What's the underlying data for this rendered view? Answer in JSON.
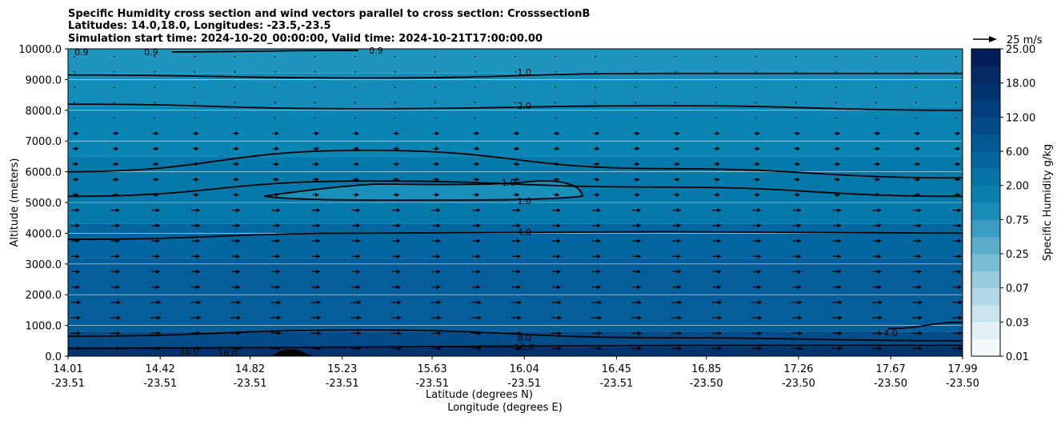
{
  "chart_data": {
    "type": "contour",
    "title": [
      "Specific Humidity cross section and wind vectors parallel to cross section: CrosssectionB",
      "Latitudes: 14.0,18.0, Longitudes: -23.5,-23.5",
      "Simulation start time: 2024-10-20_00:00:00, Valid time: 2024-10-21T17:00:00.00"
    ],
    "ylabel": "Altitude (meters)",
    "xlabel_lat": "Latitude (degrees N)",
    "xlabel_lon": "Longitude (degrees E)",
    "ylim": [
      0,
      10000
    ],
    "yticks": [
      "0.0",
      "1000.0",
      "2000.0",
      "3000.0",
      "4000.0",
      "5000.0",
      "6000.0",
      "7000.0",
      "8000.0",
      "9000.0",
      "10000.0"
    ],
    "xlim": [
      14.01,
      17.99
    ],
    "xticks": [
      {
        "lat": "14.01",
        "lon": "-23.51"
      },
      {
        "lat": "14.42",
        "lon": "-23.51"
      },
      {
        "lat": "14.82",
        "lon": "-23.51"
      },
      {
        "lat": "15.23",
        "lon": "-23.51"
      },
      {
        "lat": "15.63",
        "lon": "-23.51"
      },
      {
        "lat": "16.04",
        "lon": "-23.51"
      },
      {
        "lat": "16.45",
        "lon": "-23.51"
      },
      {
        "lat": "16.85",
        "lon": "-23.50"
      },
      {
        "lat": "17.26",
        "lon": "-23.50"
      },
      {
        "lat": "17.67",
        "lon": "-23.50"
      },
      {
        "lat": "17.99",
        "lon": "-23.50"
      }
    ],
    "colorbar_label": "Specific Humidity g/kg",
    "colorbar_ticks": [
      "0.01",
      "0.03",
      "0.07",
      "0.25",
      "0.75",
      "2.00",
      "6.00",
      "12.00",
      "18.00",
      "25.00"
    ],
    "quiver_key": "25 m/s",
    "contour_lines": [
      {
        "value": "0.9",
        "altitudes": [
          9900,
          9950
        ]
      },
      {
        "value": "1.0",
        "altitudes": [
          9150,
          9050,
          9200,
          9200
        ]
      },
      {
        "value": "2.0",
        "altitudes": [
          8200,
          8050,
          8150,
          8000
        ]
      },
      {
        "value": "4.0",
        "altitudes": [
          6000,
          6700,
          6100,
          5800
        ]
      },
      {
        "value": "1.0",
        "altitudes": [
          5200,
          5700,
          5500,
          5200
        ]
      },
      {
        "value": "4.0",
        "altitudes": [
          3800,
          4000,
          4050,
          4000
        ]
      },
      {
        "value": "8.0",
        "altitudes": [
          650,
          850,
          600,
          500
        ]
      },
      {
        "value": "16.0",
        "altitudes": [
          250,
          300,
          350,
          350
        ]
      },
      {
        "value": "4.0",
        "altitudes": [
          900,
          1100
        ]
      }
    ],
    "contour_labels": [
      {
        "text": "0.9",
        "lat": 14.07,
        "alt": 9900
      },
      {
        "text": "0.9",
        "lat": 14.38,
        "alt": 9900
      },
      {
        "text": "0.9",
        "lat": 15.38,
        "alt": 9950
      },
      {
        "text": "1.0",
        "lat": 16.04,
        "alt": 9250
      },
      {
        "text": "2.0",
        "lat": 16.04,
        "alt": 8150
      },
      {
        "text": "1.0",
        "lat": 15.97,
        "alt": 5650
      },
      {
        "text": "1.0",
        "lat": 16.04,
        "alt": 5050
      },
      {
        "text": "4.0",
        "lat": 16.04,
        "alt": 4050
      },
      {
        "text": "8.0",
        "lat": 16.04,
        "alt": 600
      },
      {
        "text": "16.0",
        "lat": 16.04,
        "alt": 300
      },
      {
        "text": "16.0",
        "lat": 14.55,
        "alt": 150
      },
      {
        "text": "16.0",
        "lat": 14.72,
        "alt": 100
      },
      {
        "text": "4.0",
        "lat": 17.67,
        "alt": 750
      }
    ],
    "humidity_bands": [
      {
        "alt_top": 10000,
        "qv": 0.9,
        "color": "#1f95bd"
      },
      {
        "alt_top": 9200,
        "qv": 1.2,
        "color": "#148cb8"
      },
      {
        "alt_top": 8100,
        "qv": 2.0,
        "color": "#0a85b3"
      },
      {
        "alt_top": 6500,
        "qv": 3.0,
        "color": "#0679ab"
      },
      {
        "alt_top": 4300,
        "qv": 6.0,
        "color": "#0466a0"
      },
      {
        "alt_top": 3200,
        "qv": 8.0,
        "color": "#035e99"
      },
      {
        "alt_top": 800,
        "qv": 12.0,
        "color": "#044c88"
      },
      {
        "alt_top": 300,
        "qv": 18.0,
        "color": "#03336e"
      }
    ]
  }
}
